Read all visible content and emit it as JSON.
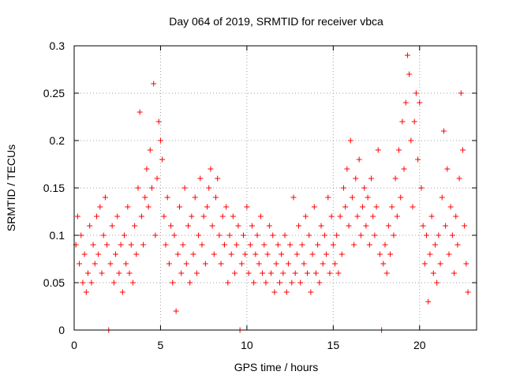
{
  "chart_data": {
    "type": "scatter",
    "title": "Day 064 of 2019, SRMTID for receiver vbca",
    "xlabel": "GPS time / hours",
    "ylabel": "SRMTID / TECUs",
    "xlim": [
      0,
      23.3
    ],
    "ylim": [
      0,
      0.3
    ],
    "x_ticks": [
      0,
      5,
      10,
      15,
      20
    ],
    "x_tick_labels": [
      "0",
      "5",
      "10",
      "15",
      "20"
    ],
    "y_ticks": [
      0,
      0.05,
      0.1,
      0.15,
      0.2,
      0.25,
      0.3
    ],
    "y_tick_labels": [
      "0",
      "0.05",
      "0.1",
      "0.15",
      "0.2",
      "0.25",
      "0.3"
    ],
    "grid": true,
    "marker": "plus",
    "point_color": "#ff0000",
    "series": [
      {
        "name": "SRMTID",
        "density_note": "approximate reconstruction of dense scatter; representative sample",
        "points": [
          [
            0.1,
            0.09
          ],
          [
            0.2,
            0.12
          ],
          [
            0.3,
            0.07
          ],
          [
            0.4,
            0.1
          ],
          [
            0.5,
            0.05
          ],
          [
            0.6,
            0.08
          ],
          [
            0.7,
            0.04
          ],
          [
            0.8,
            0.06
          ],
          [
            0.9,
            0.11
          ],
          [
            1.0,
            0.05
          ],
          [
            1.1,
            0.09
          ],
          [
            1.2,
            0.07
          ],
          [
            1.3,
            0.12
          ],
          [
            1.4,
            0.08
          ],
          [
            1.5,
            0.13
          ],
          [
            1.6,
            0.06
          ],
          [
            1.7,
            0.1
          ],
          [
            1.8,
            0.14
          ],
          [
            1.9,
            0.09
          ],
          [
            2.0,
            0.0
          ],
          [
            2.1,
            0.07
          ],
          [
            2.2,
            0.11
          ],
          [
            2.3,
            0.05
          ],
          [
            2.4,
            0.08
          ],
          [
            2.5,
            0.12
          ],
          [
            2.6,
            0.06
          ],
          [
            2.7,
            0.09
          ],
          [
            2.8,
            0.04
          ],
          [
            2.9,
            0.1
          ],
          [
            3.0,
            0.07
          ],
          [
            3.1,
            0.13
          ],
          [
            3.2,
            0.06
          ],
          [
            3.3,
            0.09
          ],
          [
            3.4,
            0.05
          ],
          [
            3.5,
            0.11
          ],
          [
            3.6,
            0.08
          ],
          [
            3.7,
            0.15
          ],
          [
            3.8,
            0.23
          ],
          [
            3.9,
            0.12
          ],
          [
            4.0,
            0.09
          ],
          [
            4.1,
            0.14
          ],
          [
            4.2,
            0.17
          ],
          [
            4.3,
            0.13
          ],
          [
            4.4,
            0.19
          ],
          [
            4.5,
            0.15
          ],
          [
            4.6,
            0.26
          ],
          [
            4.7,
            0.1
          ],
          [
            4.8,
            0.16
          ],
          [
            4.9,
            0.22
          ],
          [
            5.0,
            0.2
          ],
          [
            5.1,
            0.18
          ],
          [
            5.2,
            0.12
          ],
          [
            5.3,
            0.09
          ],
          [
            5.4,
            0.14
          ],
          [
            5.5,
            0.07
          ],
          [
            5.6,
            0.11
          ],
          [
            5.7,
            0.05
          ],
          [
            5.8,
            0.1
          ],
          [
            5.9,
            0.02
          ],
          [
            6.0,
            0.08
          ],
          [
            6.1,
            0.13
          ],
          [
            6.2,
            0.06
          ],
          [
            6.3,
            0.09
          ],
          [
            6.4,
            0.15
          ],
          [
            6.5,
            0.07
          ],
          [
            6.6,
            0.11
          ],
          [
            6.7,
            0.05
          ],
          [
            6.8,
            0.12
          ],
          [
            6.9,
            0.08
          ],
          [
            7.0,
            0.14
          ],
          [
            7.1,
            0.06
          ],
          [
            7.2,
            0.1
          ],
          [
            7.3,
            0.16
          ],
          [
            7.4,
            0.09
          ],
          [
            7.5,
            0.12
          ],
          [
            7.6,
            0.07
          ],
          [
            7.7,
            0.13
          ],
          [
            7.8,
            0.15
          ],
          [
            7.9,
            0.17
          ],
          [
            8.0,
            0.11
          ],
          [
            8.1,
            0.08
          ],
          [
            8.2,
            0.14
          ],
          [
            8.3,
            0.16
          ],
          [
            8.4,
            0.1
          ],
          [
            8.5,
            0.07
          ],
          [
            8.6,
            0.12
          ],
          [
            8.7,
            0.09
          ],
          [
            8.8,
            0.13
          ],
          [
            8.9,
            0.05
          ],
          [
            9.0,
            0.1
          ],
          [
            9.1,
            0.08
          ],
          [
            9.2,
            0.12
          ],
          [
            9.3,
            0.06
          ],
          [
            9.4,
            0.09
          ],
          [
            9.5,
            0.11
          ],
          [
            9.6,
            0.0
          ],
          [
            9.7,
            0.07
          ],
          [
            9.8,
            0.1
          ],
          [
            9.9,
            0.08
          ],
          [
            10.0,
            0.13
          ],
          [
            10.1,
            0.06
          ],
          [
            10.2,
            0.09
          ],
          [
            10.3,
            0.11
          ],
          [
            10.4,
            0.05
          ],
          [
            10.5,
            0.08
          ],
          [
            10.6,
            0.1
          ],
          [
            10.7,
            0.07
          ],
          [
            10.8,
            0.12
          ],
          [
            10.9,
            0.06
          ],
          [
            11.0,
            0.09
          ],
          [
            11.1,
            0.05
          ],
          [
            11.2,
            0.08
          ],
          [
            11.3,
            0.11
          ],
          [
            11.4,
            0.06
          ],
          [
            11.5,
            0.1
          ],
          [
            11.6,
            0.04
          ],
          [
            11.7,
            0.07
          ],
          [
            11.8,
            0.09
          ],
          [
            11.9,
            0.05
          ],
          [
            12.0,
            0.08
          ],
          [
            12.1,
            0.06
          ],
          [
            12.2,
            0.1
          ],
          [
            12.3,
            0.04
          ],
          [
            12.4,
            0.07
          ],
          [
            12.5,
            0.09
          ],
          [
            12.6,
            0.05
          ],
          [
            12.7,
            0.14
          ],
          [
            12.8,
            0.06
          ],
          [
            12.9,
            0.08
          ],
          [
            13.0,
            0.11
          ],
          [
            13.1,
            0.05
          ],
          [
            13.2,
            0.09
          ],
          [
            13.3,
            0.07
          ],
          [
            13.4,
            0.12
          ],
          [
            13.5,
            0.06
          ],
          [
            13.6,
            0.1
          ],
          [
            13.7,
            0.04
          ],
          [
            13.8,
            0.08
          ],
          [
            13.9,
            0.13
          ],
          [
            14.0,
            0.06
          ],
          [
            14.1,
            0.09
          ],
          [
            14.2,
            0.05
          ],
          [
            14.3,
            0.11
          ],
          [
            14.4,
            0.07
          ],
          [
            14.5,
            0.1
          ],
          [
            14.6,
            0.08
          ],
          [
            14.7,
            0.14
          ],
          [
            14.8,
            0.06
          ],
          [
            14.9,
            0.12
          ],
          [
            15.0,
            0.09
          ],
          [
            15.1,
            0.07
          ],
          [
            15.2,
            0.1
          ],
          [
            15.3,
            0.06
          ],
          [
            15.4,
            0.12
          ],
          [
            15.5,
            0.08
          ],
          [
            15.6,
            0.15
          ],
          [
            15.7,
            0.13
          ],
          [
            15.8,
            0.17
          ],
          [
            15.9,
            0.11
          ],
          [
            16.0,
            0.2
          ],
          [
            16.1,
            0.14
          ],
          [
            16.2,
            0.09
          ],
          [
            16.3,
            0.16
          ],
          [
            16.4,
            0.12
          ],
          [
            16.5,
            0.18
          ],
          [
            16.6,
            0.1
          ],
          [
            16.7,
            0.13
          ],
          [
            16.8,
            0.15
          ],
          [
            16.9,
            0.11
          ],
          [
            17.0,
            0.14
          ],
          [
            17.1,
            0.09
          ],
          [
            17.2,
            0.16
          ],
          [
            17.3,
            0.12
          ],
          [
            17.4,
            0.1
          ],
          [
            17.5,
            0.13
          ],
          [
            17.6,
            0.19
          ],
          [
            17.7,
            0.08
          ],
          [
            17.8,
            0.0
          ],
          [
            17.9,
            0.07
          ],
          [
            18.0,
            0.09
          ],
          [
            18.1,
            0.06
          ],
          [
            18.2,
            0.11
          ],
          [
            18.3,
            0.08
          ],
          [
            18.4,
            0.13
          ],
          [
            18.5,
            0.1
          ],
          [
            18.6,
            0.16
          ],
          [
            18.7,
            0.12
          ],
          [
            18.8,
            0.19
          ],
          [
            18.9,
            0.14
          ],
          [
            19.0,
            0.22
          ],
          [
            19.1,
            0.17
          ],
          [
            19.2,
            0.24
          ],
          [
            19.3,
            0.29
          ],
          [
            19.4,
            0.27
          ],
          [
            19.5,
            0.2
          ],
          [
            19.6,
            0.13
          ],
          [
            19.7,
            0.22
          ],
          [
            19.8,
            0.25
          ],
          [
            19.9,
            0.18
          ],
          [
            20.0,
            0.24
          ],
          [
            20.1,
            0.15
          ],
          [
            20.2,
            0.11
          ],
          [
            20.3,
            0.07
          ],
          [
            20.4,
            0.1
          ],
          [
            20.5,
            0.03
          ],
          [
            20.6,
            0.08
          ],
          [
            20.7,
            0.12
          ],
          [
            20.8,
            0.06
          ],
          [
            20.9,
            0.09
          ],
          [
            21.0,
            0.05
          ],
          [
            21.1,
            0.1
          ],
          [
            21.2,
            0.07
          ],
          [
            21.3,
            0.14
          ],
          [
            21.4,
            0.21
          ],
          [
            21.5,
            0.11
          ],
          [
            21.6,
            0.17
          ],
          [
            21.7,
            0.08
          ],
          [
            21.8,
            0.13
          ],
          [
            21.9,
            0.1
          ],
          [
            22.0,
            0.06
          ],
          [
            22.1,
            0.12
          ],
          [
            22.2,
            0.09
          ],
          [
            22.3,
            0.16
          ],
          [
            22.4,
            0.25
          ],
          [
            22.5,
            0.19
          ],
          [
            22.6,
            0.11
          ],
          [
            22.7,
            0.07
          ],
          [
            22.8,
            0.04
          ]
        ]
      }
    ]
  }
}
